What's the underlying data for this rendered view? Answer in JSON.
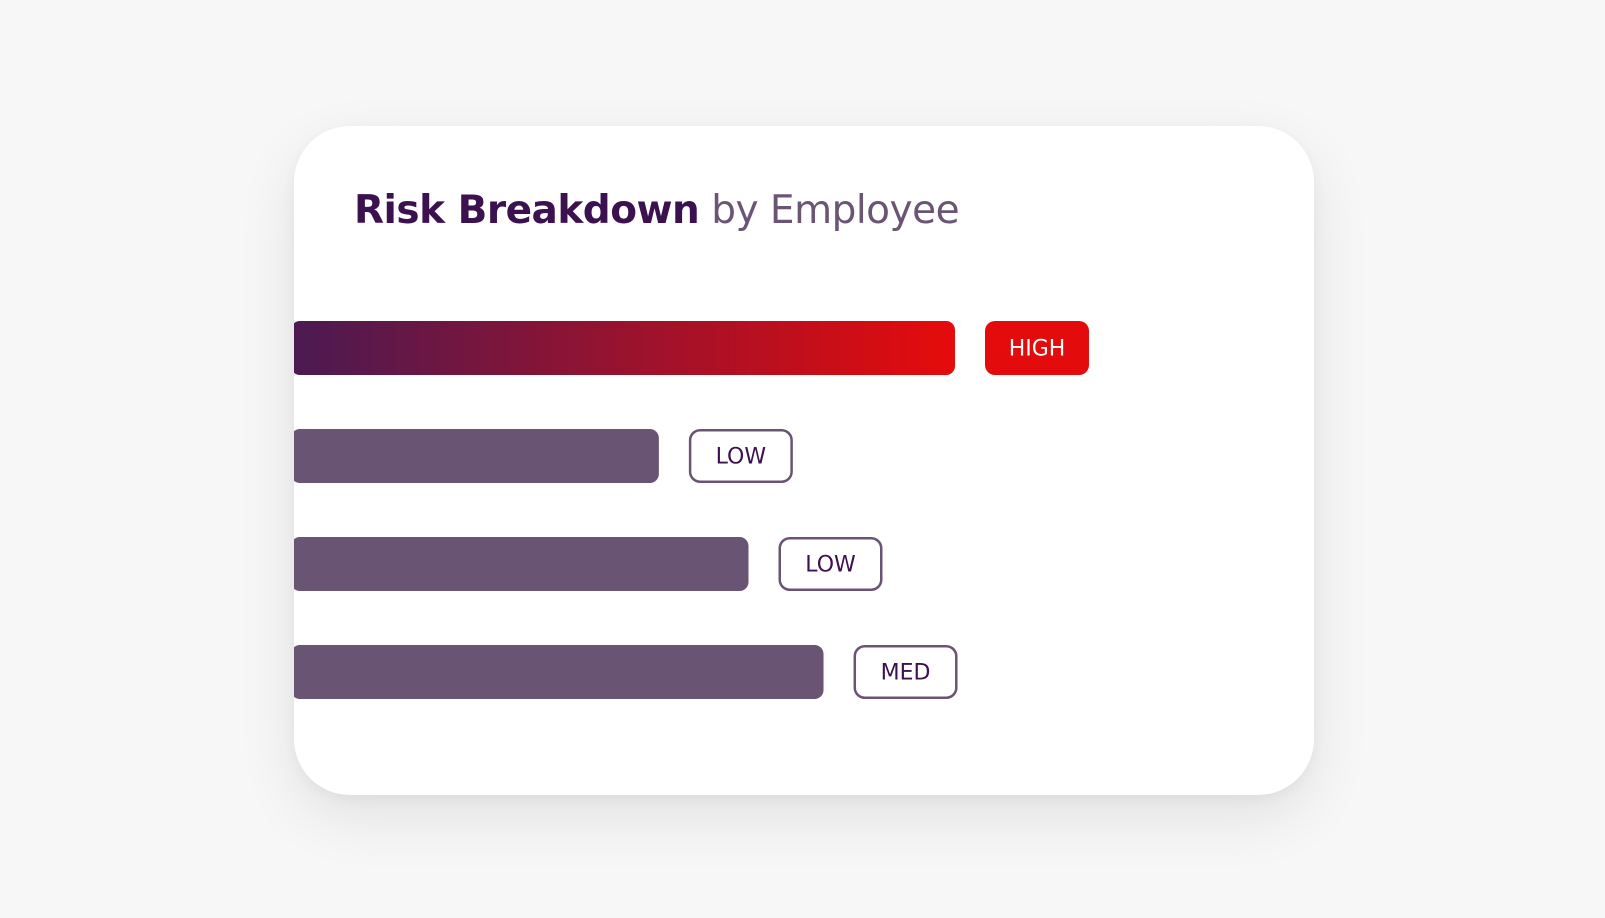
{
  "card": {
    "title_strong": "Risk Breakdown",
    "title_light": "by Employee"
  },
  "colors": {
    "background": "#f7f7f7",
    "card": "#ffffff",
    "title_strong": "#3c1150",
    "title_light": "#6a5575",
    "bar_default": "#6a5473",
    "bar_high_start": "#4a1a52",
    "bar_high_end": "#e60b0b",
    "badge_high_fill": "#e30b0b",
    "badge_high_text": "#ffffff",
    "badge_outline": "#6a5473",
    "badge_outline_text": "#3c1150"
  },
  "chart_data": {
    "type": "bar",
    "orientation": "horizontal",
    "categories": [
      "",
      "",
      "",
      ""
    ],
    "values": [
      100,
      55.4,
      68.9,
      80.2
    ],
    "risk_levels": [
      "HIGH",
      "LOW",
      "LOW",
      "MED"
    ],
    "xlim": [
      0,
      100
    ],
    "grid": false,
    "axes_visible": false,
    "legend": "none"
  }
}
